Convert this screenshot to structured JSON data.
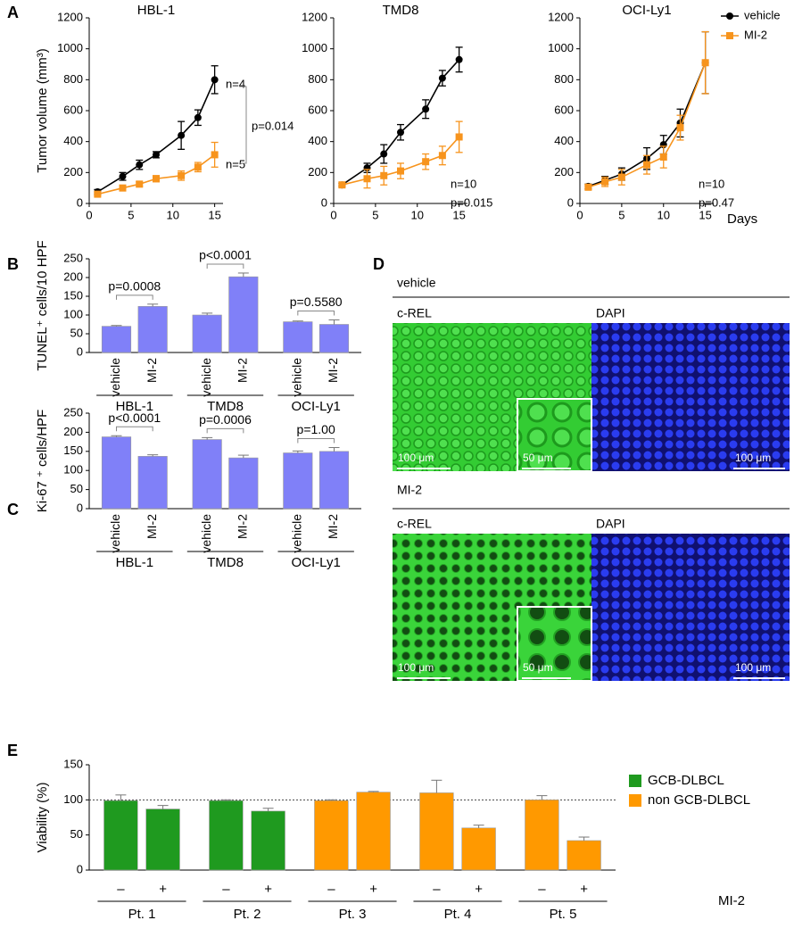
{
  "figure": {
    "panel_labels": [
      "A",
      "B",
      "C",
      "D",
      "E"
    ],
    "images": [
      {
        "label": "vehicle",
        "left": "c-REL",
        "right": "DAPI",
        "scale_left": "100 μm",
        "scale_inset": "50 μm",
        "scale_right": "100 μm"
      },
      {
        "label": "MI-2",
        "left": "c-REL",
        "right": "DAPI",
        "scale_left": "100 μm",
        "scale_inset": "50 μm",
        "scale_right": "100 μm"
      }
    ]
  },
  "chart_data": [
    {
      "type": "line",
      "title": "HBL-1",
      "y_label": "Tumor volume (mm³)",
      "x": [
        1,
        4,
        6,
        8,
        11,
        13,
        15
      ],
      "xlim": [
        0,
        16
      ],
      "xticks": [
        0,
        5,
        10,
        15
      ],
      "ylim": [
        0,
        1200
      ],
      "yticks": [
        0,
        200,
        400,
        600,
        800,
        1000,
        1200
      ],
      "series": [
        {
          "color": "#000000",
          "marker": "circle",
          "values": [
            75,
            175,
            250,
            315,
            440,
            555,
            800
          ],
          "errors": [
            15,
            25,
            30,
            20,
            90,
            50,
            90
          ]
        },
        {
          "color": "#f7941d",
          "marker": "square",
          "values": [
            60,
            100,
            125,
            160,
            180,
            235,
            315
          ],
          "errors": [
            10,
            15,
            15,
            20,
            30,
            30,
            80
          ]
        }
      ],
      "annotations": [
        "n=4",
        "n=5",
        "p=0.014"
      ]
    },
    {
      "type": "line",
      "title": "TMD8",
      "x": [
        1,
        4,
        6,
        8,
        11,
        13,
        15
      ],
      "xlim": [
        0,
        16
      ],
      "xticks": [
        0,
        5,
        10,
        15
      ],
      "ylim": [
        0,
        1200
      ],
      "yticks": [
        0,
        200,
        400,
        600,
        800,
        1000,
        1200
      ],
      "series": [
        {
          "color": "#000000",
          "marker": "circle",
          "values": [
            120,
            230,
            320,
            460,
            610,
            810,
            930
          ],
          "errors": [
            10,
            30,
            60,
            50,
            60,
            50,
            80
          ]
        },
        {
          "color": "#f7941d",
          "marker": "square",
          "values": [
            120,
            160,
            180,
            210,
            270,
            310,
            430
          ],
          "errors": [
            10,
            60,
            60,
            50,
            50,
            60,
            100
          ]
        }
      ],
      "annotations": [
        "n=10",
        "p=0.015"
      ]
    },
    {
      "type": "line",
      "title": "OCI-Ly1",
      "x_label": "Days",
      "x": [
        1,
        3,
        5,
        8,
        10,
        12,
        15
      ],
      "xlim": [
        0,
        16
      ],
      "xticks": [
        0,
        5,
        10,
        15
      ],
      "ylim": [
        0,
        1200
      ],
      "yticks": [
        0,
        200,
        400,
        600,
        800,
        1000,
        1200
      ],
      "legend": "upper right",
      "series": [
        {
          "name": "vehicle",
          "color": "#000000",
          "marker": "circle",
          "values": [
            110,
            150,
            190,
            290,
            380,
            520,
            910
          ],
          "errors": [
            15,
            25,
            40,
            70,
            60,
            90,
            200
          ]
        },
        {
          "name": "MI-2",
          "color": "#f7941d",
          "marker": "square",
          "values": [
            105,
            140,
            170,
            250,
            300,
            490,
            910
          ],
          "errors": [
            15,
            30,
            50,
            60,
            70,
            80,
            200
          ]
        }
      ],
      "annotations": [
        "n=10",
        "p=0.47"
      ]
    },
    {
      "type": "bar",
      "y_label": "TUNEL⁺ cells/10 HPF",
      "categories": [
        "vehicle",
        "MI-2",
        "vehicle",
        "MI-2",
        "vehicle",
        "MI-2"
      ],
      "groups": [
        "HBL-1",
        "TMD8",
        "OCI-Ly1"
      ],
      "ylim": [
        0,
        250
      ],
      "yticks": [
        0,
        50,
        100,
        150,
        200,
        250
      ],
      "series": [
        {
          "color": "#8080f8",
          "values": [
            70,
            123,
            100,
            202,
            82,
            75
          ],
          "errors": [
            2,
            6,
            5,
            10,
            2,
            12
          ]
        }
      ],
      "comparisons": [
        "p=0.0008",
        "p<0.0001",
        "p=0.5580"
      ]
    },
    {
      "type": "bar",
      "y_label": "Ki-67 ⁺ cells/HPF",
      "categories": [
        "vehicle",
        "MI-2",
        "vehicle",
        "MI-2",
        "vehicle",
        "MI-2"
      ],
      "groups": [
        "HBL-1",
        "TMD8",
        "OCI-Ly1"
      ],
      "ylim": [
        0,
        250
      ],
      "yticks": [
        0,
        50,
        100,
        150,
        200,
        250
      ],
      "series": [
        {
          "color": "#8080f8",
          "values": [
            188,
            137,
            181,
            133,
            146,
            150
          ],
          "errors": [
            3,
            4,
            5,
            7,
            5,
            10
          ]
        }
      ],
      "comparisons": [
        "p<0.0001",
        "p=0.0006",
        "p=1.00"
      ]
    },
    {
      "type": "bar",
      "y_label": "Viability (%)",
      "categories": [
        "–",
        "+",
        "–",
        "+",
        "–",
        "+",
        "–",
        "+",
        "–",
        "+"
      ],
      "groups": [
        "Pt. 1",
        "Pt. 2",
        "Pt. 3",
        "Pt. 4",
        "Pt. 5"
      ],
      "category_axis_label": "MI-2",
      "ylim": [
        0,
        150
      ],
      "yticks": [
        0,
        50,
        100,
        150
      ],
      "ref_line": 100,
      "legend": "right",
      "series": [
        {
          "name": "GCB-DLBCL",
          "color": "#1f9a1f",
          "values": [
            99,
            87,
            99,
            84,
            null,
            null,
            null,
            null,
            null,
            null
          ],
          "errors": [
            8,
            5,
            1,
            4,
            null,
            null,
            null,
            null,
            null,
            null
          ]
        },
        {
          "name": "non GCB-DLBCL",
          "color": "#ff9900",
          "values": [
            null,
            null,
            null,
            null,
            99,
            111,
            110,
            60,
            100,
            42
          ],
          "errors": [
            null,
            null,
            null,
            null,
            1,
            1,
            18,
            4,
            6,
            5
          ]
        }
      ]
    }
  ]
}
